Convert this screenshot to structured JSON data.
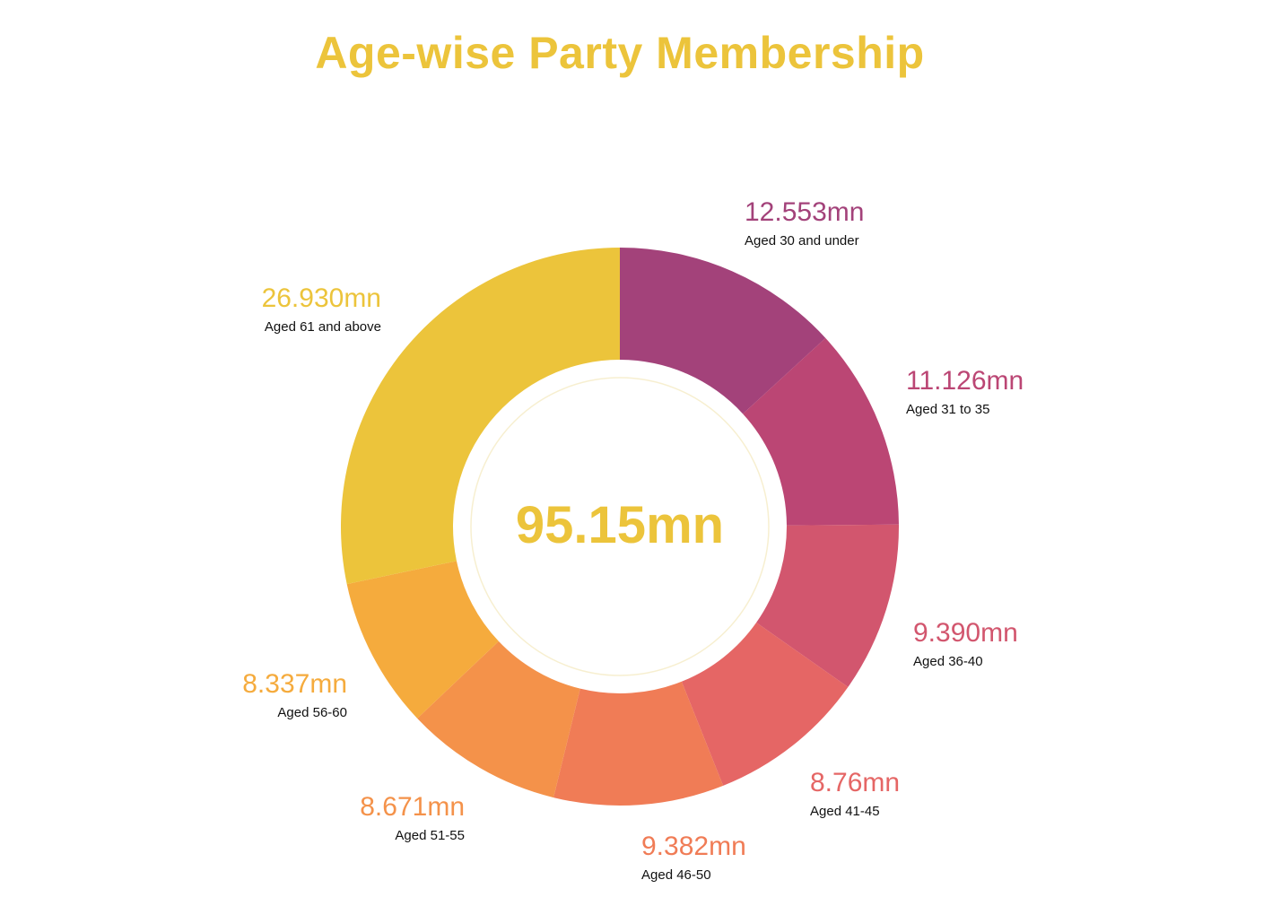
{
  "chart_data": {
    "type": "pie",
    "title": "Age-wise Party Membership",
    "center_label": "95.15mn",
    "unit_suffix": "mn",
    "categories": [
      "Aged 30 and under",
      "Aged 31 to 35",
      "Aged 36-40",
      "Aged 41-45",
      "Aged 46-50",
      "Aged 51-55",
      "Aged 56-60",
      "Aged 61 and above"
    ],
    "value_labels": [
      "12.553mn",
      "11.126mn",
      "9.390mn",
      "8.76mn",
      "9.382mn",
      "8.671mn",
      "8.337mn",
      "26.930mn"
    ],
    "values": [
      12.553,
      11.126,
      9.39,
      8.76,
      9.382,
      8.671,
      8.337,
      26.93
    ],
    "colors": [
      "#a3427a",
      "#bb4674",
      "#d2566e",
      "#e56665",
      "#f07c56",
      "#f4924a",
      "#f5ab3d",
      "#ecc43b"
    ],
    "title_color": "#ecc43b",
    "center_color": "#ecc43b",
    "donut": true,
    "legend": "none"
  }
}
